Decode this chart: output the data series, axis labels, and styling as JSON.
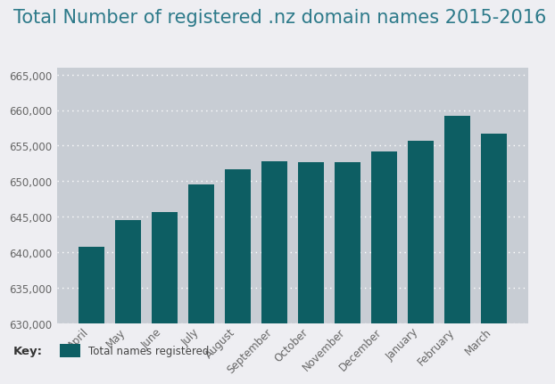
{
  "title": "Total Number of registered .nz domain names 2015-2016",
  "categories": [
    "April",
    "May",
    "June",
    "July",
    "August",
    "September",
    "October",
    "November",
    "December",
    "January",
    "February",
    "March"
  ],
  "values": [
    640700,
    644500,
    645700,
    649500,
    651700,
    652800,
    652700,
    652700,
    654200,
    655700,
    659200,
    656700
  ],
  "bar_color": "#0d5e63",
  "plot_bg_color": "#c8cdd4",
  "outer_bg_color": "#eeeef2",
  "ylim": [
    630000,
    666000
  ],
  "yticks": [
    630000,
    635000,
    640000,
    645000,
    650000,
    655000,
    660000,
    665000
  ],
  "grid_color": "#ffffff",
  "tick_label_color": "#666666",
  "title_color": "#2d7a8a",
  "title_fontsize": 15,
  "axis_fontsize": 8.5,
  "legend_label": "Total names registered",
  "legend_color": "#0d5e63",
  "key_label": "Key:"
}
